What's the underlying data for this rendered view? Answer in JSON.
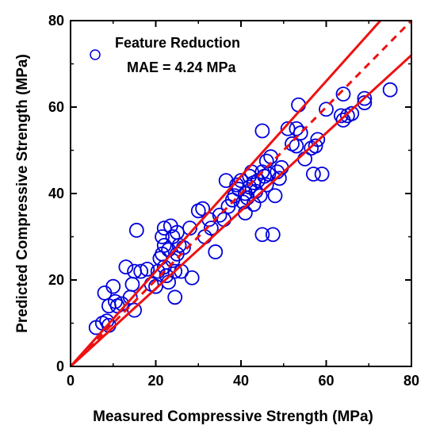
{
  "chart_data": {
    "type": "scatter",
    "title": "",
    "xlabel": "Measured Compressive Strength (MPa)",
    "ylabel": "Predicted Compressive Strength (MPa)",
    "xlim": [
      0,
      80
    ],
    "ylim": [
      0,
      80
    ],
    "xticks": [
      "0",
      "20",
      "40",
      "60",
      "80"
    ],
    "yticks": [
      "0",
      "20",
      "40",
      "60",
      "80"
    ],
    "grid": false,
    "legend_position": "top-left",
    "legend": {
      "series_name": "Feature Reduction",
      "metric_text": "MAE = 4.24 MPa"
    },
    "colors": {
      "points": "#0000dd",
      "lines": "#ee1111",
      "axis": "#000000"
    },
    "reference_lines": [
      {
        "name": "unity",
        "slope": 1.0,
        "x_range": [
          0,
          80
        ],
        "style": "dashed"
      },
      {
        "name": "upper bound",
        "slope": 1.1,
        "x_range": [
          0,
          72.7
        ],
        "style": "solid"
      },
      {
        "name": "lower bound",
        "slope": 0.9,
        "x_range": [
          0,
          80
        ],
        "style": "solid"
      }
    ],
    "series": [
      {
        "name": "Feature Reduction",
        "points": [
          [
            6,
            9
          ],
          [
            7.5,
            10
          ],
          [
            8.5,
            10.5
          ],
          [
            9,
            9.5
          ],
          [
            8,
            17
          ],
          [
            9,
            14
          ],
          [
            10,
            18.5
          ],
          [
            10.5,
            15
          ],
          [
            11,
            14
          ],
          [
            12,
            14.5
          ],
          [
            13,
            23
          ],
          [
            14,
            16
          ],
          [
            14.5,
            19
          ],
          [
            15,
            13
          ],
          [
            15.5,
            31.5
          ],
          [
            15,
            22
          ],
          [
            16.5,
            22
          ],
          [
            18,
            22.5
          ],
          [
            19,
            19
          ],
          [
            20,
            18.5
          ],
          [
            20.5,
            22
          ],
          [
            21,
            25
          ],
          [
            21.5,
            26
          ],
          [
            21.5,
            30
          ],
          [
            22,
            32
          ],
          [
            22,
            28
          ],
          [
            22,
            23
          ],
          [
            22.5,
            21
          ],
          [
            23,
            19.5
          ],
          [
            23,
            27
          ],
          [
            23.5,
            32.5
          ],
          [
            24,
            30
          ],
          [
            24,
            24.5
          ],
          [
            24.5,
            16
          ],
          [
            24.5,
            22
          ],
          [
            25,
            26
          ],
          [
            25,
            31
          ],
          [
            25.5,
            28
          ],
          [
            26,
            22
          ],
          [
            26.5,
            27.5
          ],
          [
            28,
            32
          ],
          [
            28.5,
            20.5
          ],
          [
            30,
            36
          ],
          [
            31,
            36.5
          ],
          [
            31.5,
            30
          ],
          [
            32.5,
            34
          ],
          [
            33,
            32
          ],
          [
            34,
            26.5
          ],
          [
            35,
            35
          ],
          [
            36,
            34
          ],
          [
            37,
            37
          ],
          [
            36.5,
            43
          ],
          [
            38,
            38.5
          ],
          [
            38.5,
            39.5
          ],
          [
            39,
            42
          ],
          [
            39.5,
            41
          ],
          [
            40,
            43
          ],
          [
            40.5,
            38
          ],
          [
            41,
            40
          ],
          [
            41,
            35.5
          ],
          [
            41.5,
            39
          ],
          [
            42,
            44
          ],
          [
            42,
            41.5
          ],
          [
            42.5,
            45
          ],
          [
            43,
            37.5
          ],
          [
            43,
            42.5
          ],
          [
            43.5,
            40.5
          ],
          [
            44,
            43
          ],
          [
            44.5,
            39.5
          ],
          [
            45,
            54.5
          ],
          [
            45,
            45
          ],
          [
            45,
            30.5
          ],
          [
            45.5,
            44
          ],
          [
            46,
            47.5
          ],
          [
            46,
            42
          ],
          [
            46.5,
            44.5
          ],
          [
            47,
            48.5
          ],
          [
            47.5,
            30.5
          ],
          [
            48,
            39.5
          ],
          [
            48.5,
            45
          ],
          [
            49,
            43.5
          ],
          [
            49.5,
            46
          ],
          [
            51,
            55
          ],
          [
            52,
            51.5
          ],
          [
            53,
            55
          ],
          [
            53,
            51
          ],
          [
            53.5,
            60.5
          ],
          [
            54,
            54
          ],
          [
            55,
            48
          ],
          [
            56.5,
            50.5
          ],
          [
            57,
            44.5
          ],
          [
            57.5,
            51
          ],
          [
            58,
            52.5
          ],
          [
            59,
            44.5
          ],
          [
            60,
            59.5
          ],
          [
            63.5,
            58
          ],
          [
            64,
            63
          ],
          [
            64,
            57
          ],
          [
            65,
            58
          ],
          [
            66,
            58.5
          ],
          [
            69,
            61
          ],
          [
            69,
            62
          ],
          [
            75,
            64
          ]
        ]
      }
    ]
  }
}
